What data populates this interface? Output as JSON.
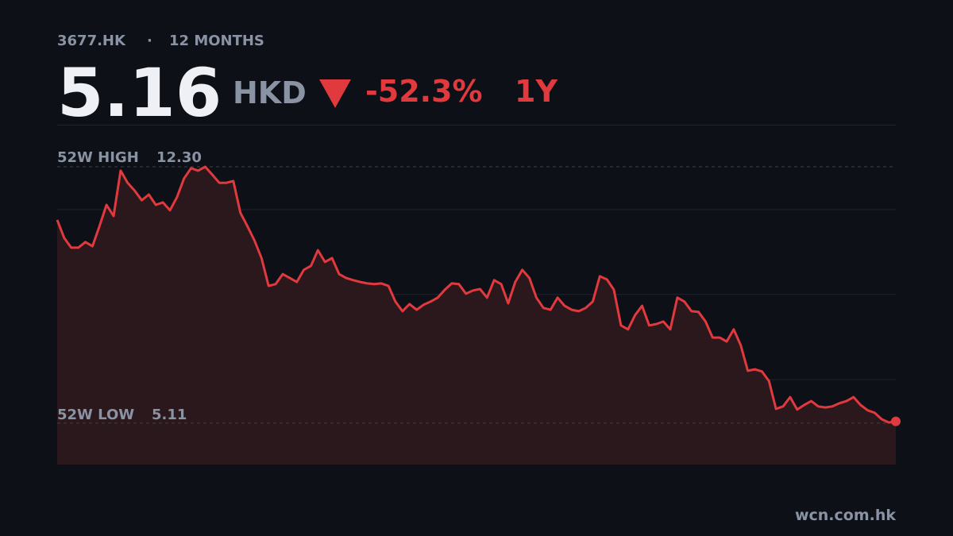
{
  "chart_data": {
    "type": "line",
    "ticker": "3677.HK",
    "separator": "·",
    "period": "12 MONTHS",
    "price": 5.16,
    "currency": "HKD",
    "change": "-52.3%",
    "range": "1Y",
    "high_label": "52W HIGH",
    "high": {
      "value": 12.3,
      "label": "12.30"
    },
    "low_label": "52W LOW",
    "low": 5.11,
    "source": "wcn.com.hk",
    "color": "#e0393e",
    "fill": "#2b181d",
    "ylim": [
      3.95,
      13.48
    ],
    "yticks": [
      6.33,
      8.72,
      11.1
    ],
    "grid": true,
    "values": [
      10.81,
      10.3,
      10.03,
      10.03,
      10.19,
      10.07,
      10.63,
      11.23,
      10.92,
      12.19,
      11.85,
      11.63,
      11.36,
      11.52,
      11.23,
      11.3,
      11.08,
      11.45,
      11.97,
      12.26,
      12.19,
      12.3,
      12.08,
      11.85,
      11.85,
      11.9,
      11.01,
      10.63,
      10.23,
      9.74,
      8.96,
      9.01,
      9.29,
      9.18,
      9.07,
      9.41,
      9.52,
      9.96,
      9.63,
      9.74,
      9.29,
      9.18,
      9.12,
      9.07,
      9.03,
      9.01,
      9.03,
      8.96,
      8.52,
      8.25,
      8.45,
      8.29,
      8.43,
      8.52,
      8.63,
      8.85,
      9.03,
      9.01,
      8.74,
      8.83,
      8.87,
      8.63,
      9.12,
      9.01,
      8.47,
      9.07,
      9.41,
      9.18,
      8.63,
      8.34,
      8.29,
      8.63,
      8.4,
      8.29,
      8.25,
      8.34,
      8.52,
      9.23,
      9.14,
      8.85,
      7.85,
      7.74,
      8.14,
      8.4,
      7.85,
      7.89,
      7.96,
      7.74,
      8.63,
      8.52,
      8.25,
      8.23,
      7.96,
      7.51,
      7.51,
      7.4,
      7.74,
      7.29,
      6.58,
      6.62,
      6.56,
      6.29,
      5.51,
      5.58,
      5.84,
      5.49,
      5.62,
      5.73,
      5.58,
      5.55,
      5.58,
      5.67,
      5.73,
      5.84,
      5.62,
      5.47,
      5.4,
      5.22,
      5.13,
      5.16
    ]
  }
}
